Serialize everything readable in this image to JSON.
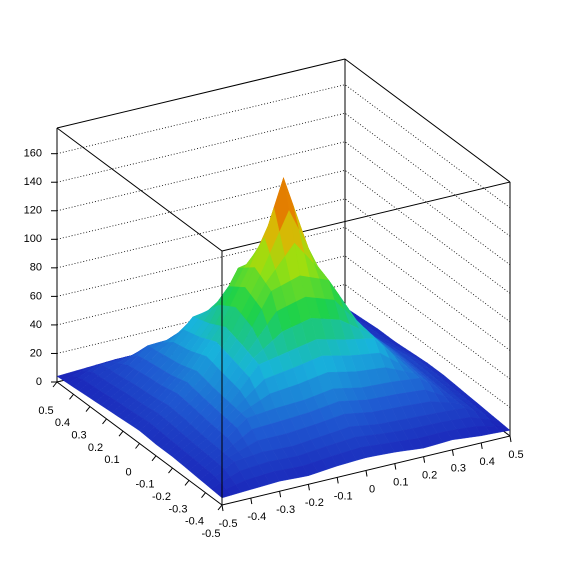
{
  "chart_data": {
    "type": "surface",
    "x": [
      -0.5,
      -0.4,
      -0.3,
      -0.2,
      -0.1,
      0,
      0.1,
      0.2,
      0.3,
      0.4,
      0.5
    ],
    "y": [
      -0.5,
      -0.4,
      -0.3,
      -0.2,
      -0.1,
      0,
      0.1,
      0.2,
      0.3,
      0.4,
      0.5
    ],
    "z": [
      [
        5,
        6,
        7,
        6,
        8,
        9,
        8,
        6,
        7,
        5,
        4
      ],
      [
        6,
        17,
        19,
        18,
        20,
        22,
        19,
        18,
        17,
        16,
        5
      ],
      [
        7,
        18,
        34,
        36,
        37,
        40,
        36,
        35,
        33,
        17,
        6
      ],
      [
        8,
        19,
        36,
        58,
        62,
        66,
        61,
        57,
        35,
        18,
        7
      ],
      [
        8,
        21,
        38,
        63,
        96,
        102,
        94,
        60,
        37,
        19,
        8
      ],
      [
        9,
        22,
        41,
        67,
        104,
        162,
        100,
        63,
        38,
        20,
        8
      ],
      [
        8,
        20,
        37,
        61,
        95,
        99,
        92,
        59,
        36,
        18,
        7
      ],
      [
        7,
        19,
        35,
        57,
        60,
        64,
        59,
        56,
        34,
        17,
        6
      ],
      [
        6,
        17,
        33,
        34,
        36,
        38,
        35,
        33,
        32,
        16,
        6
      ],
      [
        5,
        16,
        17,
        18,
        19,
        21,
        18,
        17,
        16,
        15,
        5
      ],
      [
        4,
        5,
        6,
        6,
        7,
        8,
        7,
        6,
        5,
        5,
        4
      ]
    ],
    "xlim": [
      -0.5,
      0.5
    ],
    "ylim": [
      -0.5,
      0.5
    ],
    "zlim": [
      0,
      178
    ],
    "xticks": [
      -0.5,
      -0.4,
      -0.3,
      -0.2,
      -0.1,
      0,
      0.1,
      0.2,
      0.3,
      0.4,
      0.5
    ],
    "yticks": [
      -0.5,
      -0.4,
      -0.3,
      -0.2,
      -0.1,
      0,
      0.1,
      0.2,
      0.3,
      0.4,
      0.5
    ],
    "zticks": [
      0,
      20,
      40,
      60,
      80,
      100,
      120,
      140,
      160
    ],
    "grid": true,
    "colormap": [
      "#1a1ab4",
      "#1f5ad2",
      "#18b4dc",
      "#1ed24a",
      "#9be010",
      "#f0a800",
      "#c82800"
    ]
  }
}
